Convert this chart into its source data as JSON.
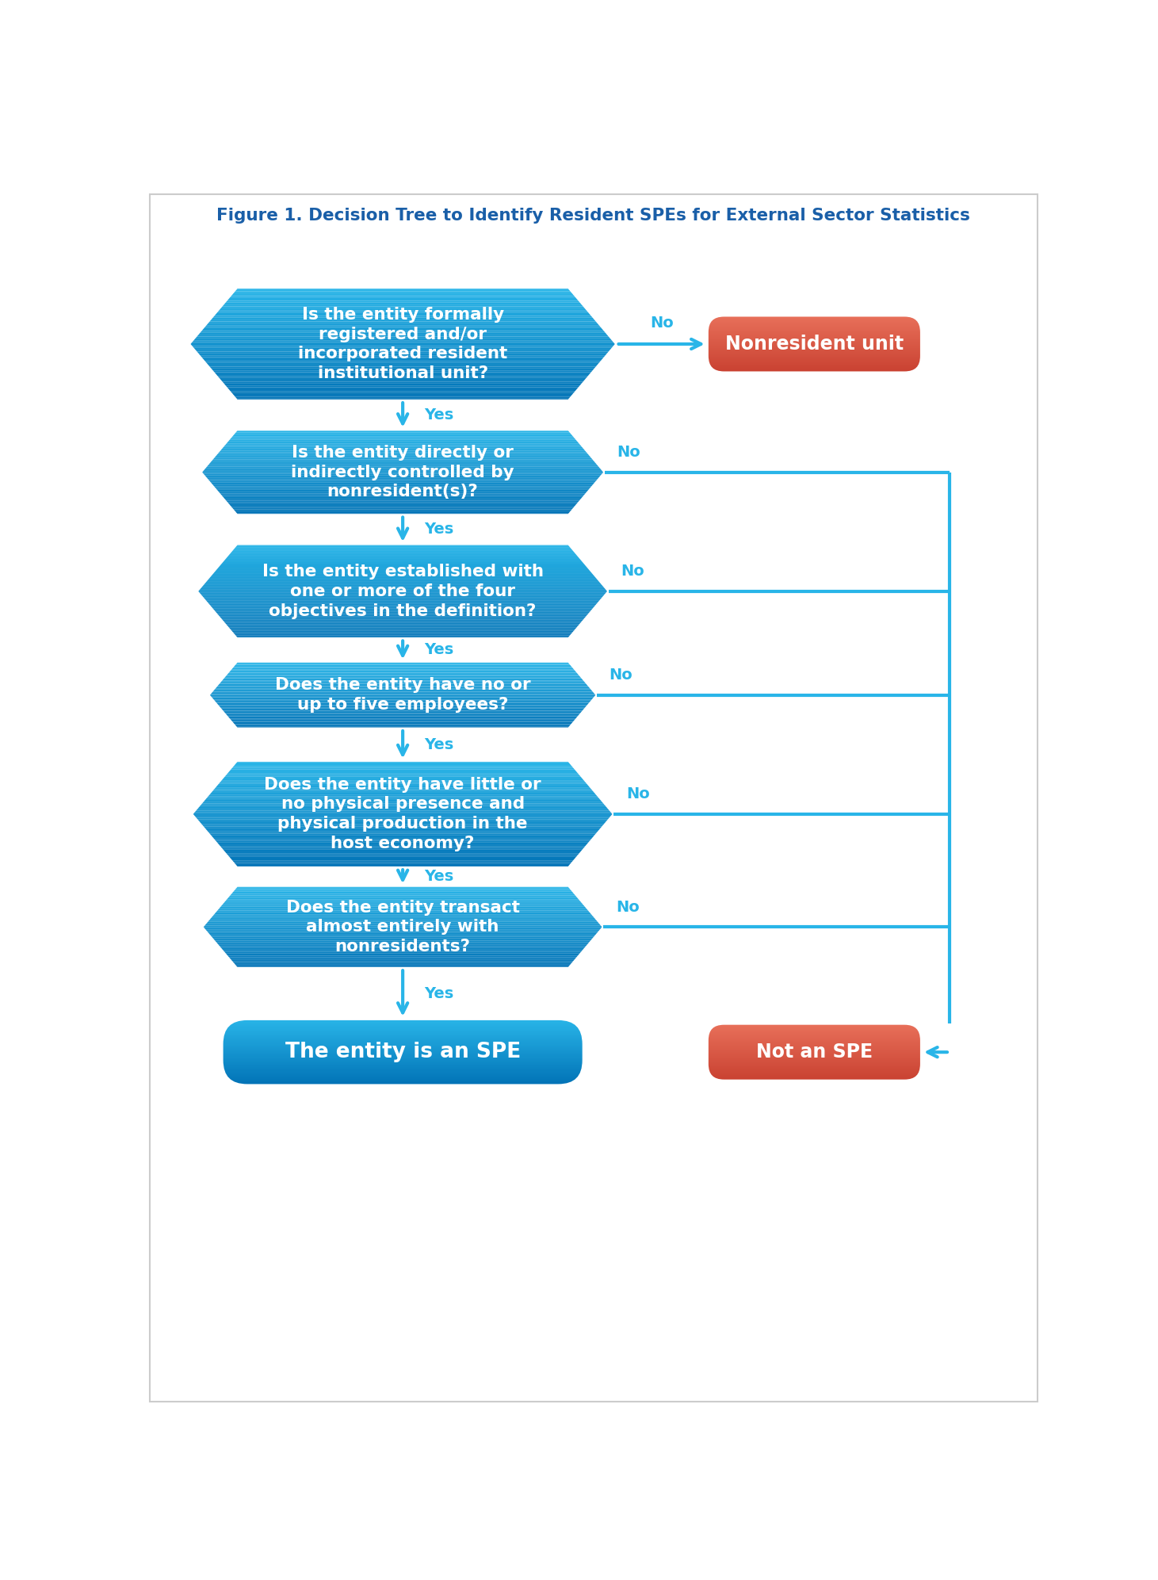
{
  "title": "Figure 1. Decision Tree to Identify Resident SPEs for External Sector Statistics",
  "title_color": "#1A5FA8",
  "title_fontsize": 15.5,
  "bg_color": "#FFFFFF",
  "hex_color_top": "#29B5E8",
  "hex_color_bottom": "#0071B5",
  "salmon_color_top": "#E8705A",
  "salmon_color_bottom": "#C84030",
  "questions": [
    "Is the entity formally\nregistered and/or\nincorporated resident\ninstitutional unit?",
    "Is the entity directly or\nindirectly controlled by\nnonresident(s)?",
    "Is the entity established with\none or more of the four\nobjectives in the definition?",
    "Does the entity have no or\nup to five employees?",
    "Does the entity have little or\nno physical presence and\nphysical production in the\nhost economy?",
    "Does the entity transact\nalmost entirely with\nnonresidents?"
  ],
  "yes_label": "Yes",
  "no_label": "No",
  "spe_label": "The entity is an SPE",
  "not_spe_label": "Not an SPE",
  "nonresident_label": "Nonresident unit",
  "arrow_color": "#29B5E8",
  "label_color_yes": "#29B5E8",
  "label_color_no": "#29B5E8"
}
